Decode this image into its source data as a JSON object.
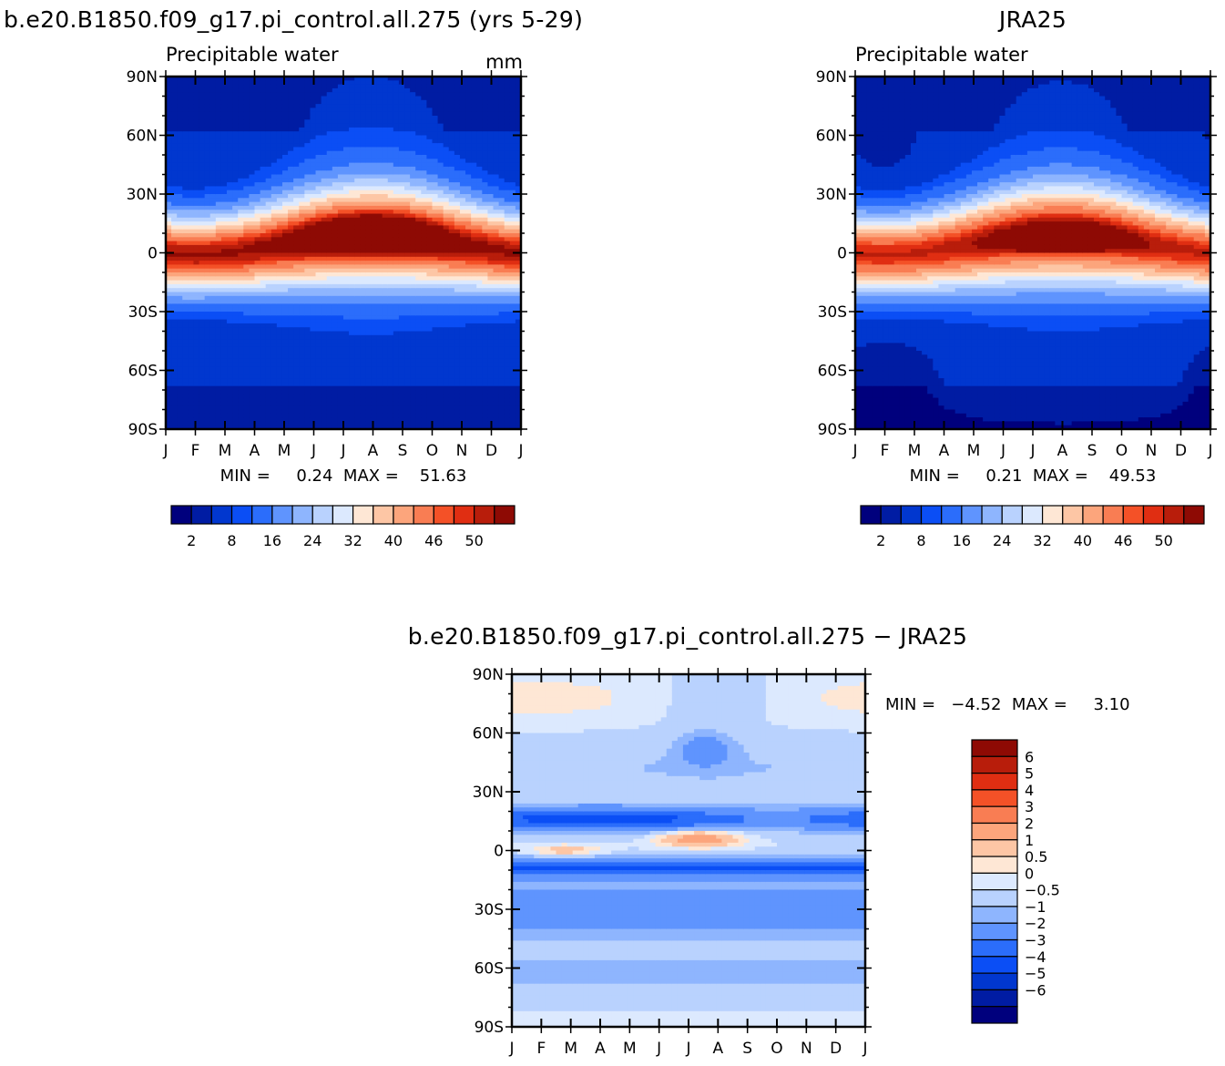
{
  "colors": {
    "abs": [
      "#00007d",
      "#001ca3",
      "#0137cf",
      "#0b4ef5",
      "#2b6dfb",
      "#5f94fe",
      "#8eb5fe",
      "#b9d2fe",
      "#dce9fe",
      "#fee7d5",
      "#fdc6a5",
      "#fca57c",
      "#f97d53",
      "#f45127",
      "#e02e12",
      "#b81d0b",
      "#8e0a04"
    ],
    "diff": [
      "#00007d",
      "#001ca3",
      "#0137cf",
      "#0b4ef5",
      "#2b6dfb",
      "#5f94fe",
      "#8eb5fe",
      "#b9d2fe",
      "#dce9fe",
      "#fee7d5",
      "#fdc6a5",
      "#fca57c",
      "#f97d53",
      "#f45127",
      "#e02e12",
      "#b81d0b",
      "#8e0a04"
    ]
  },
  "chart_data": [
    {
      "type": "heatmap",
      "title": "b.e20.B1850.f09_g17.pi_control.all.275 (yrs 5-29)",
      "subtitle": "Precipitable water",
      "units": "mm",
      "x_ticks": [
        "J",
        "F",
        "M",
        "A",
        "M",
        "J",
        "J",
        "A",
        "S",
        "O",
        "N",
        "D",
        "J"
      ],
      "y_ticks": [
        "90N",
        "60N",
        "30N",
        "0",
        "30S",
        "60S",
        "90S"
      ],
      "stats": "MIN =     0.24  MAX =    51.63",
      "colorbar_labels": [
        "2",
        "8",
        "16",
        "24",
        "32",
        "40",
        "46",
        "50"
      ],
      "colorbar_levels": [
        2,
        4,
        6,
        8,
        12,
        16,
        20,
        24,
        28,
        32,
        36,
        40,
        44,
        46,
        48,
        50
      ],
      "min": 0.24,
      "max": 51.63
    },
    {
      "type": "heatmap",
      "title": "JRA25",
      "subtitle": "Precipitable water",
      "units": "",
      "x_ticks": [
        "J",
        "F",
        "M",
        "A",
        "M",
        "J",
        "J",
        "A",
        "S",
        "O",
        "N",
        "D",
        "J"
      ],
      "y_ticks": [
        "90N",
        "60N",
        "30N",
        "0",
        "30S",
        "60S",
        "90S"
      ],
      "stats": "MIN =     0.21  MAX =    49.53",
      "colorbar_labels": [
        "2",
        "8",
        "16",
        "24",
        "32",
        "40",
        "46",
        "50"
      ],
      "colorbar_levels": [
        2,
        4,
        6,
        8,
        12,
        16,
        20,
        24,
        28,
        32,
        36,
        40,
        44,
        46,
        48,
        50
      ],
      "min": 0.21,
      "max": 49.53
    },
    {
      "type": "heatmap",
      "title": "b.e20.B1850.f09_g17.pi_control.all.275 − JRA25",
      "x_ticks": [
        "J",
        "F",
        "M",
        "A",
        "M",
        "J",
        "J",
        "A",
        "S",
        "O",
        "N",
        "D",
        "J"
      ],
      "y_ticks": [
        "90N",
        "60N",
        "30N",
        "0",
        "30S",
        "60S",
        "90S"
      ],
      "stats": "MIN =   −4.52  MAX =     3.10",
      "colorbar_labels": [
        "6",
        "5",
        "4",
        "3",
        "2",
        "1",
        "0.5",
        "0",
        "−0.5",
        "−1",
        "−2",
        "−3",
        "−4",
        "−5",
        "−6"
      ],
      "colorbar_levels": [
        -6,
        -5,
        -4,
        -3,
        -2,
        -1,
        -0.5,
        0,
        0.5,
        1,
        2,
        3,
        4,
        5,
        6
      ],
      "min": -4.52,
      "max": 3.1
    }
  ]
}
